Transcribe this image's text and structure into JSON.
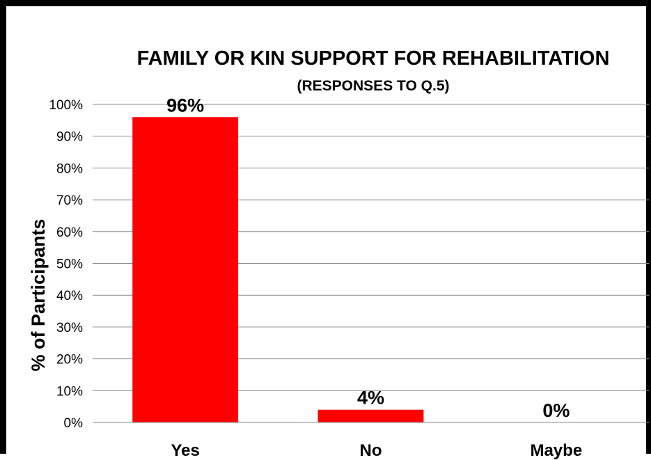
{
  "chart_data": {
    "type": "bar",
    "title": "FAMILY OR KIN SUPPORT FOR REHABILITATION",
    "subtitle": "(RESPONSES TO Q.5)",
    "xlabel": "",
    "ylabel": "% of Participants",
    "categories": [
      "Yes",
      "No",
      "Maybe"
    ],
    "values": [
      96,
      4,
      0
    ],
    "data_labels": [
      "96%",
      "4%",
      "0%"
    ],
    "ylim": [
      0,
      100
    ],
    "y_ticks": [
      0,
      10,
      20,
      30,
      40,
      50,
      60,
      70,
      80,
      90,
      100
    ],
    "y_tick_labels": [
      "0%",
      "10%",
      "20%",
      "30%",
      "40%",
      "50%",
      "60%",
      "70%",
      "80%",
      "90%",
      "100%"
    ],
    "grid": true,
    "legend": "none",
    "bar_color": "#ff0000"
  }
}
